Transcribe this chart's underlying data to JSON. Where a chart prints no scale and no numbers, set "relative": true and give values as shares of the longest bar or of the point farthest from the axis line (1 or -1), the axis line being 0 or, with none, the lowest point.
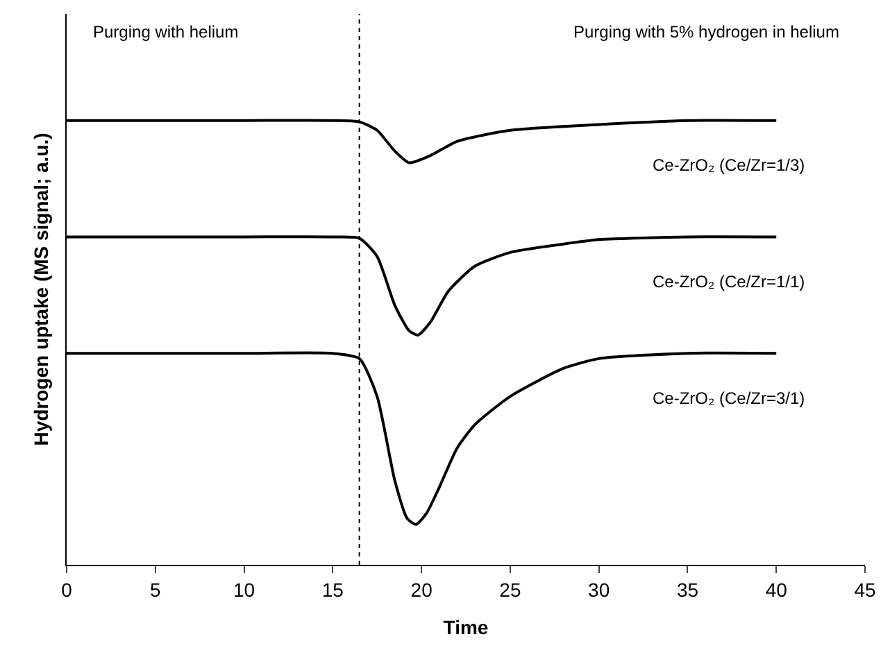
{
  "chart_data": {
    "type": "line",
    "relative": true,
    "xlabel": "Time",
    "ylabel": "Hydrogen uptake (MS signal; a.u.)",
    "xlim": [
      0,
      45
    ],
    "xticks": [
      0,
      5,
      10,
      15,
      20,
      25,
      30,
      35,
      40,
      45
    ],
    "marker": "none",
    "line_style": "solid",
    "series": [
      {
        "color": "#000000",
        "x": [
          0,
          5,
          10,
          15,
          16.5,
          17.5,
          18.5,
          19.3,
          20.5,
          22,
          25,
          30,
          35,
          40
        ],
        "values": [
          1.0,
          1.0,
          1.0,
          1.0,
          0.997,
          0.978,
          0.931,
          0.905,
          0.921,
          0.953,
          0.978,
          0.991,
          1.0,
          1.0
        ]
      },
      {
        "color": "#000000",
        "x": [
          0,
          5,
          10,
          15,
          16.5,
          17.5,
          18.5,
          19.3,
          19.8,
          20.5,
          21.5,
          23,
          25,
          28,
          30,
          35,
          40
        ],
        "values": [
          0.738,
          0.738,
          0.738,
          0.738,
          0.735,
          0.694,
          0.584,
          0.527,
          0.517,
          0.546,
          0.615,
          0.672,
          0.703,
          0.722,
          0.732,
          0.738,
          0.738
        ]
      },
      {
        "color": "#000000",
        "x": [
          0,
          5,
          10,
          15,
          16.5,
          17.5,
          18.5,
          19.2,
          19.7,
          20.3,
          21,
          22,
          23,
          25,
          28,
          30,
          35,
          40
        ],
        "values": [
          0.476,
          0.476,
          0.476,
          0.476,
          0.464,
          0.379,
          0.189,
          0.104,
          0.091,
          0.117,
          0.174,
          0.262,
          0.315,
          0.379,
          0.442,
          0.464,
          0.476,
          0.476
        ]
      }
    ],
    "ref_lines": [
      {
        "axis": "x",
        "value": 16.5,
        "color": "#000000",
        "line_style": "dotted"
      }
    ],
    "annotations": [
      "Purging with helium",
      "Purging with 5% hydrogen in helium",
      "Ce-ZrO₂ (Ce/Zr=1/3)",
      "Ce-ZrO₂ (Ce/Zr=1/1)",
      "Ce-ZrO₂ (Ce/Zr=3/1)"
    ]
  }
}
